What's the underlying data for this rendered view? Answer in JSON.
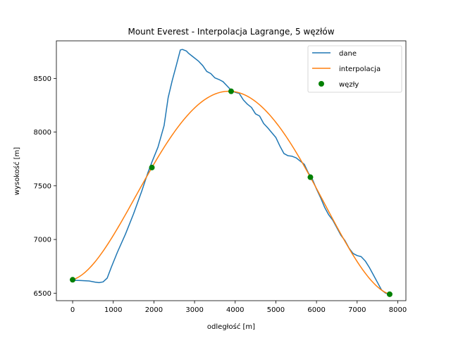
{
  "chart_data": {
    "type": "line",
    "title": "Mount Everest - Interpolacja Lagrange, 5 węzłów",
    "xlabel": "odległość [m]",
    "ylabel": "wysokość [m]",
    "xlim": [
      -400,
      8200
    ],
    "ylim": [
      6430,
      8850
    ],
    "xticks": [
      0,
      1000,
      2000,
      3000,
      4000,
      5000,
      6000,
      7000,
      8000
    ],
    "yticks": [
      6500,
      7000,
      7500,
      8000,
      8500
    ],
    "grid": false,
    "legend_position": "top-right",
    "series": [
      {
        "name": "dane",
        "color": "#1f77b4",
        "type": "line",
        "x": [
          0,
          200,
          400,
          550,
          650,
          750,
          850,
          950,
          1100,
          1300,
          1500,
          1700,
          1850,
          1950,
          2100,
          2250,
          2350,
          2450,
          2550,
          2650,
          2700,
          2800,
          2850,
          2950,
          3100,
          3200,
          3300,
          3400,
          3500,
          3600,
          3700,
          3800,
          3900,
          4000,
          4100,
          4200,
          4300,
          4400,
          4500,
          4600,
          4700,
          4800,
          4900,
          5000,
          5100,
          5200,
          5300,
          5400,
          5500,
          5600,
          5700,
          5800,
          5900,
          6000,
          6100,
          6200,
          6300,
          6400,
          6500,
          6600,
          6700,
          6800,
          6900,
          7000,
          7100,
          7200,
          7300,
          7400,
          7500,
          7600,
          7700,
          7800
        ],
        "y": [
          6620,
          6618,
          6614,
          6603,
          6598,
          6605,
          6640,
          6740,
          6880,
          7050,
          7240,
          7450,
          7620,
          7720,
          7860,
          8060,
          8320,
          8480,
          8620,
          8765,
          8770,
          8755,
          8735,
          8705,
          8660,
          8620,
          8565,
          8545,
          8505,
          8490,
          8470,
          8430,
          8390,
          8370,
          8360,
          8300,
          8260,
          8230,
          8170,
          8150,
          8080,
          8040,
          7995,
          7950,
          7870,
          7800,
          7780,
          7775,
          7760,
          7730,
          7700,
          7620,
          7560,
          7470,
          7390,
          7300,
          7230,
          7180,
          7110,
          7040,
          6990,
          6920,
          6870,
          6850,
          6840,
          6800,
          6740,
          6670,
          6600,
          6530,
          6500,
          6490
        ]
      },
      {
        "name": "interpolacja",
        "color": "#ff7f0e",
        "type": "line",
        "nodes_x": [
          0,
          1950,
          3900,
          5850,
          7800
        ],
        "nodes_y": [
          6625,
          7670,
          8380,
          7580,
          6490
        ]
      },
      {
        "name": "węzły",
        "color": "#008000",
        "type": "scatter",
        "x": [
          0,
          1950,
          3900,
          5850,
          7800
        ],
        "y": [
          6625,
          7670,
          8380,
          7580,
          6490
        ]
      }
    ]
  }
}
